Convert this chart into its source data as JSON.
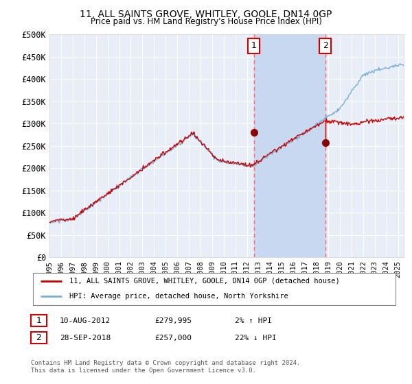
{
  "title": "11, ALL SAINTS GROVE, WHITLEY, GOOLE, DN14 0GP",
  "subtitle": "Price paid vs. HM Land Registry's House Price Index (HPI)",
  "ylabel_ticks": [
    "£0",
    "£50K",
    "£100K",
    "£150K",
    "£200K",
    "£250K",
    "£300K",
    "£350K",
    "£400K",
    "£450K",
    "£500K"
  ],
  "ytick_values": [
    0,
    50000,
    100000,
    150000,
    200000,
    250000,
    300000,
    350000,
    400000,
    450000,
    500000
  ],
  "ylim": [
    0,
    500000
  ],
  "xlim_start": 1995.0,
  "xlim_end": 2025.5,
  "background_color": "#ffffff",
  "plot_bg_color": "#e8eef8",
  "grid_color": "#ffffff",
  "marker1_date": 2012.6,
  "marker1_value": 279995,
  "marker1_label": "1",
  "marker2_date": 2018.75,
  "marker2_value": 257000,
  "marker2_label": "2",
  "hpi_color": "#7aaed6",
  "price_color": "#cc0000",
  "marker_color": "#8b0000",
  "vline_color": "#e87070",
  "span_color": "#c8d8f0",
  "legend_label1": "11, ALL SAINTS GROVE, WHITLEY, GOOLE, DN14 0GP (detached house)",
  "legend_label2": "HPI: Average price, detached house, North Yorkshire",
  "annotation1_num": "1",
  "annotation1_date": "10-AUG-2012",
  "annotation1_price": "£279,995",
  "annotation1_hpi": "2% ↑ HPI",
  "annotation2_num": "2",
  "annotation2_date": "28-SEP-2018",
  "annotation2_price": "£257,000",
  "annotation2_hpi": "22% ↓ HPI",
  "footnote": "Contains HM Land Registry data © Crown copyright and database right 2024.\nThis data is licensed under the Open Government Licence v3.0.",
  "xtick_years": [
    1995,
    1996,
    1997,
    1998,
    1999,
    2000,
    2001,
    2002,
    2003,
    2004,
    2005,
    2006,
    2007,
    2008,
    2009,
    2010,
    2011,
    2012,
    2013,
    2014,
    2015,
    2016,
    2017,
    2018,
    2019,
    2020,
    2021,
    2022,
    2023,
    2024,
    2025
  ]
}
